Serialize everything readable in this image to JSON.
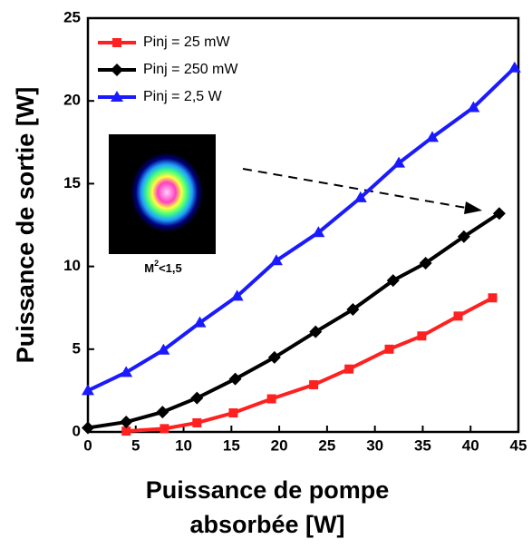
{
  "chart_data": {
    "type": "line",
    "x_label": [
      "Puissance de pompe",
      "absorbée  [W]"
    ],
    "y_label": "Puissance de sortie  [W]",
    "xlim": [
      0,
      45
    ],
    "ylim": [
      0,
      25
    ],
    "xticks": [
      0,
      5,
      10,
      15,
      20,
      25,
      30,
      35,
      40,
      45
    ],
    "yticks": [
      0,
      5,
      10,
      15,
      20,
      25
    ],
    "annotation": [
      "M",
      "2",
      "<1,5"
    ],
    "series": [
      {
        "name": "Pinj = 25 mW",
        "color": "#ff2020",
        "marker": "square",
        "x": [
          4,
          8,
          11.4,
          15.2,
          19.2,
          23.6,
          27.3,
          31.5,
          34.9,
          38.7,
          42.3
        ],
        "values": [
          0.05,
          0.2,
          0.55,
          1.15,
          2.0,
          2.85,
          3.8,
          5.0,
          5.8,
          7.0,
          8.1
        ]
      },
      {
        "name": "Pinj = 250 mW",
        "color": "#000000",
        "marker": "diamond",
        "x": [
          0,
          4,
          7.8,
          11.4,
          15.4,
          19.5,
          23.8,
          27.7,
          31.9,
          35.3,
          39.3,
          43
        ],
        "values": [
          0.25,
          0.6,
          1.2,
          2.05,
          3.2,
          4.5,
          6.05,
          7.4,
          9.15,
          10.2,
          11.8,
          13.2
        ]
      },
      {
        "name": "Pinj = 2,5 W",
        "color": "#1a1aff",
        "marker": "triangle",
        "x": [
          0,
          4,
          7.9,
          11.7,
          15.6,
          19.7,
          24.1,
          28.5,
          32.5,
          36.0,
          40.3,
          44.6
        ],
        "values": [
          2.5,
          3.6,
          4.95,
          6.6,
          8.2,
          10.35,
          12.05,
          14.15,
          16.25,
          17.8,
          19.6,
          22
        ]
      }
    ]
  }
}
